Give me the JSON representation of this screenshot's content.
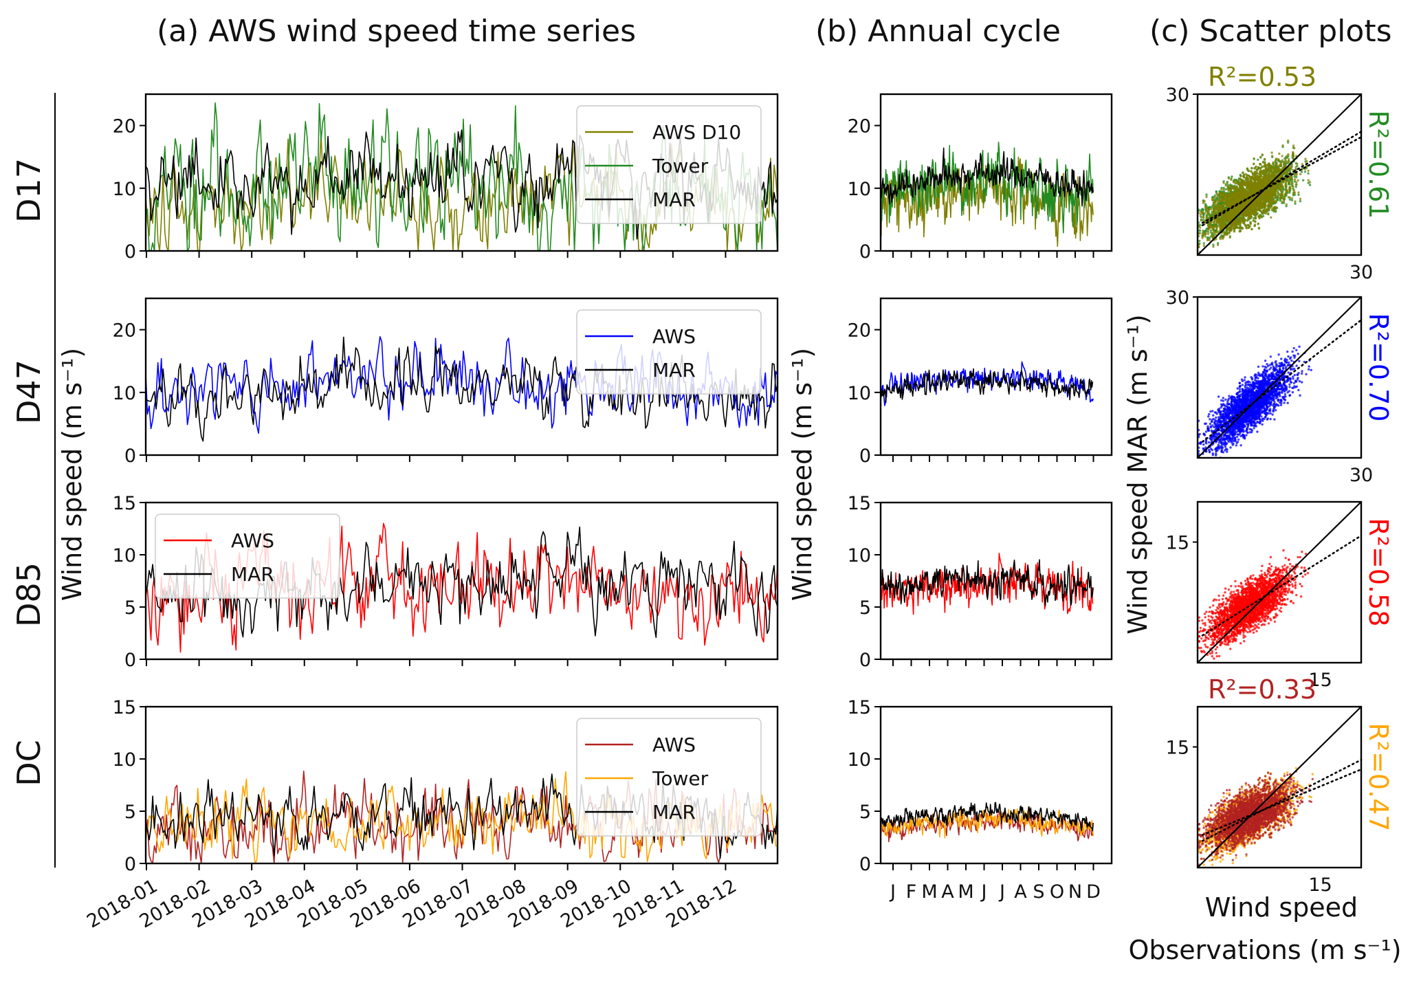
{
  "panel_titles": {
    "a": "(a) AWS wind speed time series",
    "b": "(b)  Annual cycle",
    "c": "(c)  Scatter plots"
  },
  "axis_labels": {
    "a_ylabel": "Wind speed (m s⁻¹)",
    "b_ylabel": "Wind speed (m s⁻¹)",
    "c_ylabel": "Wind speed MAR (m s⁻¹)",
    "c_xlabel_line1": "Wind speed",
    "c_xlabel_line2": "Observations (m s⁻¹)"
  },
  "colors": {
    "AWS D10": "#808000",
    "Tower": "#228B22",
    "MAR": "#000000",
    "AWS D47": "#0000ff",
    "AWS D85": "#ff0000",
    "AWS DC": "#b22222",
    "Tower DC": "#ffa500"
  },
  "chart_data": [
    {
      "type": "line",
      "panel": "a",
      "station": "D17",
      "ylim": [
        0,
        25
      ],
      "yticks": [
        0,
        10,
        20
      ],
      "xtick_labels": [
        "2018-01",
        "2018-02",
        "2018-03",
        "2018-04",
        "2018-05",
        "2018-06",
        "2018-07",
        "2018-08",
        "2018-09",
        "2018-10",
        "2018-11",
        "2018-12"
      ],
      "series": [
        {
          "name": "AWS D10",
          "color": "#808000",
          "mean": 8,
          "amp": 3,
          "noise": 5,
          "seed": 11
        },
        {
          "name": "Tower",
          "color": "#228B22",
          "mean": 10,
          "amp": 2,
          "noise": 6,
          "seed": 12
        },
        {
          "name": "MAR",
          "color": "#000000",
          "mean": 11,
          "amp": 3,
          "noise": 4,
          "seed": 13
        }
      ],
      "legend": [
        "AWS D10",
        "Tower",
        "MAR"
      ],
      "legend_loc": "upper right"
    },
    {
      "type": "line",
      "panel": "a",
      "station": "D47",
      "ylim": [
        0,
        25
      ],
      "yticks": [
        0,
        10,
        20
      ],
      "series": [
        {
          "name": "AWS",
          "color": "#0000ff",
          "mean": 11,
          "amp": 2.5,
          "noise": 3.5,
          "seed": 21
        },
        {
          "name": "MAR",
          "color": "#000000",
          "mean": 10.5,
          "amp": 2.5,
          "noise": 3,
          "seed": 22
        }
      ],
      "legend": [
        "AWS",
        "MAR"
      ],
      "legend_loc": "upper right"
    },
    {
      "type": "line",
      "panel": "a",
      "station": "D85",
      "ylim": [
        0,
        15
      ],
      "yticks": [
        0,
        5,
        10,
        15
      ],
      "series": [
        {
          "name": "AWS",
          "color": "#ff0000",
          "mean": 6.5,
          "amp": 1.5,
          "noise": 2.8,
          "seed": 31
        },
        {
          "name": "MAR",
          "color": "#000000",
          "mean": 7,
          "amp": 1.5,
          "noise": 2.2,
          "seed": 32
        }
      ],
      "legend": [
        "AWS",
        "MAR"
      ],
      "legend_loc": "upper left"
    },
    {
      "type": "line",
      "panel": "a",
      "station": "DC",
      "ylim": [
        0,
        15
      ],
      "yticks": [
        0,
        5,
        10,
        15
      ],
      "series": [
        {
          "name": "AWS",
          "color": "#b22222",
          "mean": 3.5,
          "amp": 1,
          "noise": 2.2,
          "seed": 41
        },
        {
          "name": "Tower",
          "color": "#ffa500",
          "mean": 3.6,
          "amp": 1,
          "noise": 2,
          "seed": 42
        },
        {
          "name": "MAR",
          "color": "#000000",
          "mean": 4.2,
          "amp": 1,
          "noise": 1.8,
          "seed": 43
        }
      ],
      "legend": [
        "AWS",
        "Tower",
        "MAR"
      ],
      "legend_loc": "upper right"
    },
    {
      "type": "line",
      "panel": "b",
      "station": "D17",
      "ylim": [
        0,
        25
      ],
      "yticks": [
        0,
        10,
        20
      ],
      "month_labels": [
        "J",
        "F",
        "M",
        "A",
        "M",
        "J",
        "J",
        "A",
        "S",
        "O",
        "N",
        "D"
      ],
      "series": [
        {
          "name": "AWS D10",
          "color": "#808000",
          "mean": 8,
          "amp": 3,
          "noise": 3,
          "seed": 51
        },
        {
          "name": "Tower",
          "color": "#228B22",
          "mean": 10,
          "amp": 3,
          "noise": 3,
          "seed": 52
        },
        {
          "name": "MAR",
          "color": "#000000",
          "mean": 11,
          "amp": 3,
          "noise": 1.5,
          "seed": 53
        }
      ]
    },
    {
      "type": "line",
      "panel": "b",
      "station": "D47",
      "ylim": [
        0,
        25
      ],
      "yticks": [
        0,
        10,
        20
      ],
      "series": [
        {
          "name": "AWS",
          "color": "#0000ff",
          "mean": 11.5,
          "amp": 2,
          "noise": 1.2,
          "seed": 61
        },
        {
          "name": "MAR",
          "color": "#000000",
          "mean": 11,
          "amp": 2.3,
          "noise": 1,
          "seed": 62
        }
      ]
    },
    {
      "type": "line",
      "panel": "b",
      "station": "D85",
      "ylim": [
        0,
        15
      ],
      "yticks": [
        0,
        5,
        10,
        15
      ],
      "series": [
        {
          "name": "AWS",
          "color": "#ff0000",
          "mean": 6.8,
          "amp": 1,
          "noise": 1.3,
          "seed": 71
        },
        {
          "name": "MAR",
          "color": "#000000",
          "mean": 7.2,
          "amp": 1,
          "noise": 0.9,
          "seed": 72
        }
      ]
    },
    {
      "type": "line",
      "panel": "b",
      "station": "DC",
      "ylim": [
        0,
        15
      ],
      "yticks": [
        0,
        5,
        10,
        15
      ],
      "series": [
        {
          "name": "AWS",
          "color": "#b22222",
          "mean": 3.6,
          "amp": 1,
          "noise": 0.6,
          "seed": 81
        },
        {
          "name": "Tower",
          "color": "#ffa500",
          "mean": 3.8,
          "amp": 1,
          "noise": 0.6,
          "seed": 82
        },
        {
          "name": "MAR",
          "color": "#000000",
          "mean": 4.4,
          "amp": 1,
          "noise": 0.5,
          "seed": 83
        }
      ]
    },
    {
      "type": "scatter",
      "panel": "c",
      "station": "D17",
      "xlim": [
        0,
        30
      ],
      "ylim": [
        0,
        30
      ],
      "ytick_label": "30",
      "xtick_label": "30",
      "series": [
        {
          "name": "Tower",
          "color": "#228B22",
          "r2": "R²=0.61",
          "r2_loc": "right",
          "fit_slope": 0.55,
          "fit_intercept": 5.5
        },
        {
          "name": "AWS D10",
          "color": "#808000",
          "r2": "R²=0.53",
          "r2_loc": "top",
          "fit_slope": 0.6,
          "fit_intercept": 5
        }
      ]
    },
    {
      "type": "scatter",
      "panel": "c",
      "station": "D47",
      "xlim": [
        0,
        30
      ],
      "ylim": [
        0,
        30
      ],
      "ytick_label": "30",
      "xtick_label": "30",
      "series": [
        {
          "name": "AWS",
          "color": "#0000ff",
          "r2": "R²=0.70",
          "r2_loc": "right",
          "fit_slope": 0.78,
          "fit_intercept": 2.3
        }
      ]
    },
    {
      "type": "scatter",
      "panel": "c",
      "station": "D85",
      "xlim": [
        0,
        20
      ],
      "ylim": [
        0,
        20
      ],
      "ytick_label": "15",
      "xtick_label": "15",
      "series": [
        {
          "name": "AWS",
          "color": "#ff0000",
          "r2": "R²=0.58",
          "r2_loc": "right",
          "fit_slope": 0.64,
          "fit_intercept": 3
        }
      ]
    },
    {
      "type": "scatter",
      "panel": "c",
      "station": "DC",
      "xlim": [
        0,
        20
      ],
      "ylim": [
        0,
        20
      ],
      "ytick_label": "15",
      "xtick_label": "15",
      "series": [
        {
          "name": "Tower",
          "color": "#ffa500",
          "r2": "R²=0.47",
          "r2_loc": "right",
          "fit_slope": 0.52,
          "fit_intercept": 3
        },
        {
          "name": "AWS",
          "color": "#b22222",
          "r2": "R²=0.33",
          "r2_loc": "top",
          "fit_slope": 0.42,
          "fit_intercept": 3.8
        }
      ]
    }
  ]
}
